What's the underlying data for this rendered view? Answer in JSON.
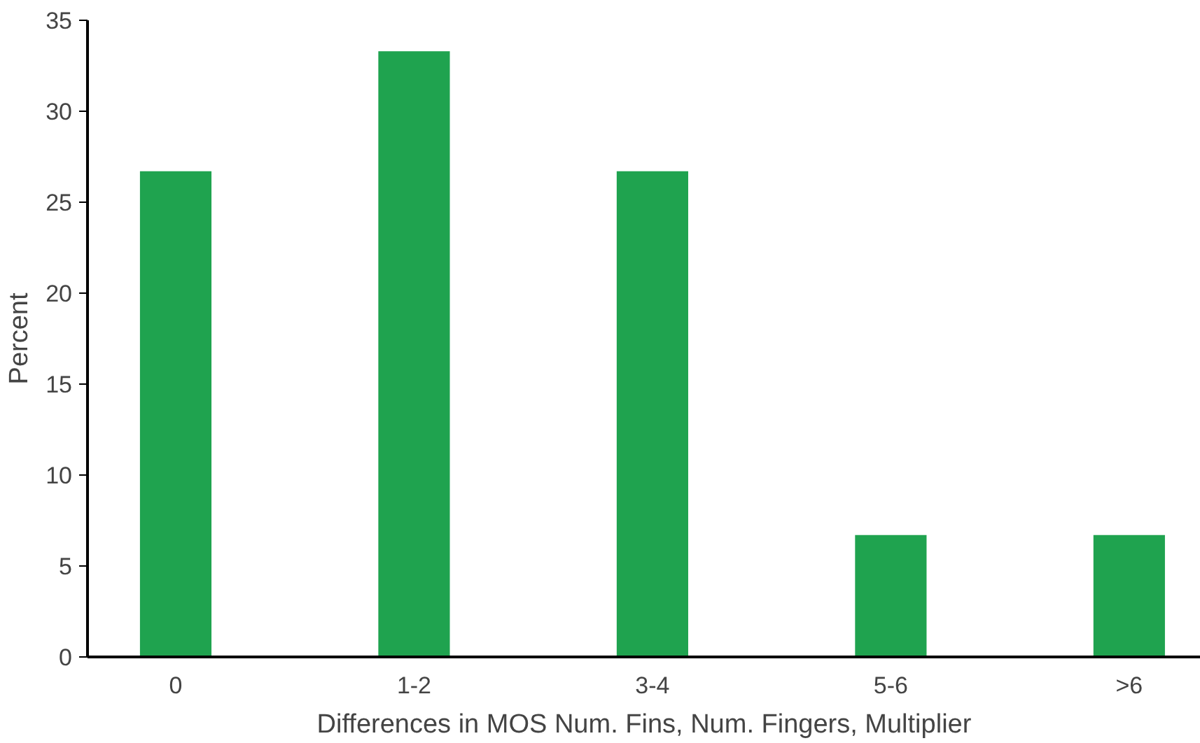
{
  "chart_data": {
    "type": "bar",
    "xlabel": "Differences in MOS Num. Fins, Num. Fingers, Multiplier",
    "ylabel": "Percent",
    "categories": [
      "0",
      "1-2",
      "3-4",
      "5-6",
      ">6"
    ],
    "values": [
      26.7,
      33.3,
      26.7,
      6.7,
      6.7
    ],
    "color": "#1fa34f",
    "ylim": [
      0,
      35
    ],
    "yticks": [
      0,
      5,
      10,
      15,
      20,
      25,
      30,
      35
    ],
    "grid": false
  }
}
